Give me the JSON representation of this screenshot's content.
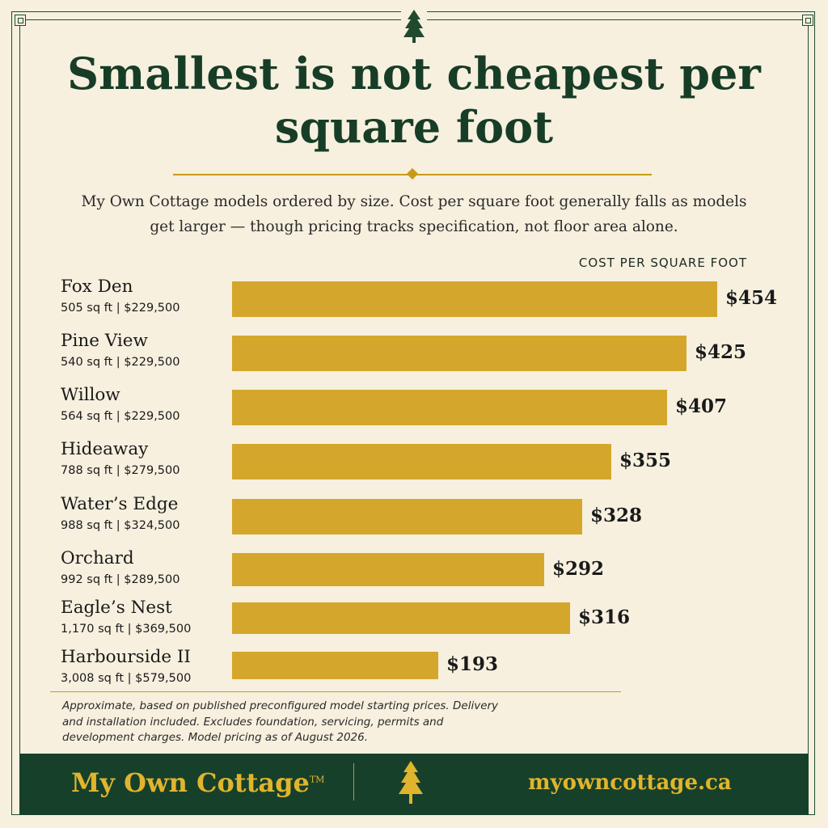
{
  "title": "Smallest is not cheapest per square foot",
  "subtitle": "My Own Cottage models ordered by size. Cost per square foot generally falls as models get larger — though pricing tracks specification, not floor area alone.",
  "column_header": "COST PER SQUARE FOOT",
  "footnote": "Approximate, based on published preconfigured model starting prices. Delivery and installation included. Excludes foundation, servicing, permits and development charges.  Model pricing as of August 2026.",
  "footer": {
    "brand": "My Own Cottage",
    "trademark": "TM",
    "url": "myowncottage.ca"
  },
  "colors": {
    "bar": "#d4a72c",
    "accent": "#c99a17",
    "forest_green": "#17402a",
    "background": "#f7f0df",
    "footer_text": "#e0b52d"
  },
  "icons": [
    "pine-tree-icon"
  ],
  "chart_data": {
    "type": "bar",
    "orientation": "horizontal",
    "categories": [
      "Fox Den",
      "Pine View",
      "Willow",
      "Hideaway",
      "Water’s Edge",
      "Orchard",
      "Eagle’s Nest",
      "Harbourside II"
    ],
    "details": [
      "505 sq ft  |  $229,500",
      "540 sq ft  |  $229,500",
      "564 sq ft  |  $229,500",
      "788 sq ft  |  $279,500",
      "988 sq ft  |  $324,500",
      "992 sq ft  |  $289,500",
      "1,170 sq ft  |  $369,500",
      "3,008 sq ft  |  $579,500"
    ],
    "values": [
      454,
      425,
      407,
      355,
      328,
      292,
      316,
      193
    ],
    "value_labels": [
      "$454",
      "$425",
      "$407",
      "$355",
      "$328",
      "$292",
      "$316",
      "$193"
    ],
    "xlim": [
      0,
      454
    ],
    "grid": false,
    "legend": "none"
  }
}
